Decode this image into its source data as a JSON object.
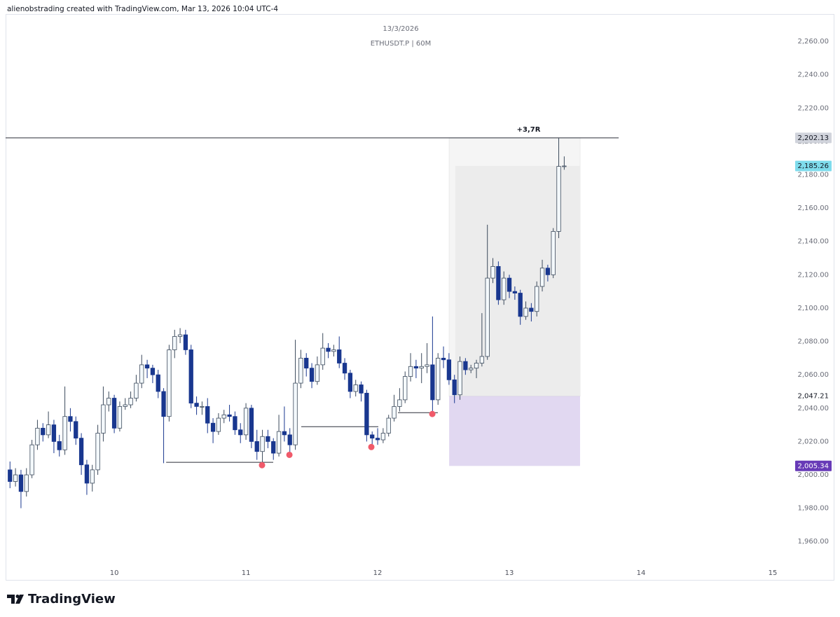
{
  "header": {
    "attribution": "alienobstrading created with TradingView.com, Mar 13, 2026 10:04 UTC-4"
  },
  "chart_data": {
    "type": "candlestick",
    "title": "13/3/2026",
    "subtitle": "ETHUSDT.P | 60M",
    "x": [
      9.2083,
      9.25,
      9.2917,
      9.3333,
      9.375,
      9.4167,
      9.4583,
      9.5,
      9.5417,
      9.5833,
      9.625,
      9.6667,
      9.7083,
      9.75,
      9.7917,
      9.8333,
      9.875,
      9.9167,
      9.9583,
      10,
      10.0417,
      10.0833,
      10.125,
      10.1667,
      10.2083,
      10.25,
      10.2917,
      10.3333,
      10.375,
      10.4167,
      10.4583,
      10.5,
      10.5417,
      10.5833,
      10.625,
      10.6667,
      10.7083,
      10.75,
      10.7917,
      10.8333,
      10.875,
      10.9167,
      10.9583,
      11,
      11.0417,
      11.0833,
      11.125,
      11.1667,
      11.2083,
      11.25,
      11.2917,
      11.3333,
      11.375,
      11.4167,
      11.4583,
      11.5,
      11.5417,
      11.5833,
      11.625,
      11.6667,
      11.7083,
      11.75,
      11.7917,
      11.8333,
      11.875,
      11.9167,
      11.9583,
      12,
      12.0417,
      12.0833,
      12.125,
      12.1667,
      12.2083,
      12.25,
      12.2917,
      12.3333,
      12.375,
      12.4167,
      12.4583,
      12.5,
      12.5417,
      12.5833,
      12.625,
      12.6667,
      12.7083,
      12.75,
      12.7917,
      12.8333,
      12.875,
      12.9167,
      12.9583,
      13,
      13.0417,
      13.0833,
      13.125,
      13.1667,
      13.2083,
      13.25,
      13.2917,
      13.3333,
      13.375,
      13.4167
    ],
    "open": [
      2003,
      1996,
      2000,
      1990,
      2000,
      2018,
      2028,
      2024,
      2030,
      2020,
      2015,
      2035,
      2032,
      2022,
      2006,
      1995,
      2003,
      2025,
      2042,
      2046,
      2028,
      2041,
      2042,
      2046,
      2055,
      2066,
      2064,
      2060,
      2050,
      2035,
      2075,
      2083,
      2084,
      2075,
      2043,
      2041,
      2041,
      2031,
      2026,
      2034,
      2036,
      2035,
      2027,
      2024,
      2040,
      2020,
      2014,
      2023,
      2020,
      2013,
      2026,
      2024,
      2018,
      2055,
      2070,
      2064,
      2056,
      2066,
      2076,
      2074,
      2075,
      2067,
      2061,
      2050,
      2054,
      2049,
      2024,
      2022,
      2021,
      2025,
      2034,
      2041,
      2045,
      2059,
      2065,
      2064,
      2065,
      2066,
      2045,
      2070,
      2069,
      2057,
      2048,
      2068,
      2063,
      2064,
      2067,
      2071,
      2118,
      2125,
      2105,
      2118,
      2110,
      2109,
      2095,
      2100,
      2098,
      2113,
      2124,
      2120,
      2146,
      2185
    ],
    "high": [
      2008,
      2004,
      2003,
      2004,
      2021,
      2033,
      2031,
      2038,
      2033,
      2024,
      2053,
      2040,
      2035,
      2025,
      2009,
      2006,
      2030,
      2053,
      2050,
      2048,
      2044,
      2046,
      2050,
      2060,
      2072,
      2069,
      2066,
      2063,
      2052,
      2078,
      2087,
      2088,
      2087,
      2078,
      2047,
      2044,
      2046,
      2034,
      2037,
      2039,
      2042,
      2038,
      2031,
      2043,
      2042,
      2027,
      2027,
      2027,
      2022,
      2036,
      2041,
      2028,
      2081,
      2075,
      2073,
      2067,
      2071,
      2085,
      2079,
      2078,
      2083,
      2070,
      2063,
      2057,
      2056,
      2051,
      2026,
      2028,
      2028,
      2036,
      2048,
      2052,
      2062,
      2073,
      2069,
      2073,
      2079,
      2095,
      2073,
      2077,
      2073,
      2060,
      2071,
      2070,
      2066,
      2069,
      2097,
      2150,
      2130,
      2128,
      2122,
      2120,
      2113,
      2111,
      2104,
      2103,
      2116,
      2129,
      2126,
      2148,
      2202,
      2191
    ],
    "low": [
      1992,
      1993,
      1980,
      1987,
      1998,
      2015,
      2020,
      2022,
      2013,
      2011,
      2012,
      2026,
      2018,
      2000,
      1988,
      1990,
      2000,
      2020,
      2038,
      2025,
      2026,
      2039,
      2040,
      2044,
      2052,
      2058,
      2055,
      2046,
      2007,
      2032,
      2070,
      2079,
      2072,
      2040,
      2036,
      2036,
      2025,
      2019,
      2024,
      2031,
      2032,
      2024,
      2019,
      2021,
      2016,
      2009,
      2006,
      2016,
      2009,
      2011,
      2020,
      2012,
      2015,
      2052,
      2059,
      2052,
      2054,
      2063,
      2070,
      2071,
      2064,
      2057,
      2046,
      2047,
      2044,
      2020,
      2016,
      2018,
      2019,
      2023,
      2032,
      2038,
      2043,
      2056,
      2058,
      2055,
      2061,
      2036,
      2042,
      2064,
      2054,
      2043,
      2045,
      2060,
      2061,
      2058,
      2065,
      2069,
      2115,
      2102,
      2102,
      2106,
      2105,
      2090,
      2093,
      2092,
      2095,
      2110,
      2116,
      2118,
      2142,
      2183
    ],
    "close": [
      1996,
      2000,
      1990,
      2000,
      2018,
      2028,
      2024,
      2030,
      2020,
      2015,
      2035,
      2032,
      2022,
      2006,
      1995,
      2003,
      2025,
      2042,
      2046,
      2028,
      2041,
      2042,
      2046,
      2055,
      2066,
      2064,
      2060,
      2050,
      2035,
      2075,
      2083,
      2084,
      2075,
      2043,
      2041,
      2041,
      2031,
      2026,
      2034,
      2036,
      2035,
      2027,
      2024,
      2040,
      2020,
      2014,
      2023,
      2020,
      2013,
      2026,
      2024,
      2018,
      2055,
      2070,
      2064,
      2056,
      2066,
      2076,
      2074,
      2075,
      2067,
      2061,
      2050,
      2054,
      2049,
      2024,
      2022,
      2021,
      2025,
      2034,
      2041,
      2045,
      2059,
      2065,
      2064,
      2065,
      2066,
      2045,
      2070,
      2069,
      2057,
      2048,
      2068,
      2063,
      2064,
      2067,
      2071,
      2118,
      2125,
      2105,
      2118,
      2110,
      2109,
      2095,
      2100,
      2098,
      2113,
      2124,
      2120,
      2146,
      2185,
      2185.26
    ],
    "up_color": "#f4f9fc",
    "up_border": "#3c4a5c",
    "down_color": "#19378f",
    "xlim": [
      9.175,
      15.117
    ],
    "xticks": [
      10,
      11,
      12,
      13,
      14,
      15
    ],
    "ylim": [
      1937,
      2276.4
    ],
    "yticks": [
      {
        "value": 1960,
        "label": "1,960.00"
      },
      {
        "value": 1980,
        "label": "1,980.00"
      },
      {
        "value": 2000,
        "label": "2,000.00"
      },
      {
        "value": 2020,
        "label": "2,020.00"
      },
      {
        "value": 2040,
        "label": "2,040.00"
      },
      {
        "value": 2060,
        "label": "2,060.00"
      },
      {
        "value": 2080,
        "label": "2,080.00"
      },
      {
        "value": 2100,
        "label": "2,100.00"
      },
      {
        "value": 2120,
        "label": "2,120.00"
      },
      {
        "value": 2140,
        "label": "2,140.00"
      },
      {
        "value": 2160,
        "label": "2,160.00"
      },
      {
        "value": 2180,
        "label": "2,180.00"
      },
      {
        "value": 2200,
        "label": "2,200.00"
      },
      {
        "value": 2220,
        "label": "2,220.00"
      },
      {
        "value": 2240,
        "label": "2,240.00"
      },
      {
        "value": 2260,
        "label": "2,260.00"
      }
    ],
    "last_price": {
      "value": 2185.26,
      "label": "2,185.26",
      "color": "#7fdcec"
    },
    "horizontal_line": {
      "x_end": 13.83,
      "color": "#2a2e39"
    },
    "position": {
      "x_start": 12.543,
      "x_end": 13.537,
      "fill_x_start": 12.59,
      "entry": {
        "value": 2047.21,
        "label": "2,047.21"
      },
      "stop": {
        "value": 2005.34,
        "label": "2,005.34",
        "color": "#673ab7"
      },
      "target": {
        "value": 2202.13,
        "label": "2,202.13"
      },
      "result": "+3,7R"
    },
    "level_lines": [
      {
        "x_start": 10.394,
        "x_end": 11.207,
        "value": 2007.5
      },
      {
        "x_start": 11.42,
        "x_end": 12.005,
        "value": 2028.9
      },
      {
        "x_start": 12.154,
        "x_end": 12.457,
        "value": 2037.3
      }
    ],
    "markers": {
      "color": "#f05a6a",
      "x": [
        11.122,
        11.33,
        11.952,
        12.415
      ],
      "values": [
        2005.8,
        2012,
        2016.7,
        2036.5
      ]
    }
  },
  "footer": {
    "brand": "TradingView"
  }
}
